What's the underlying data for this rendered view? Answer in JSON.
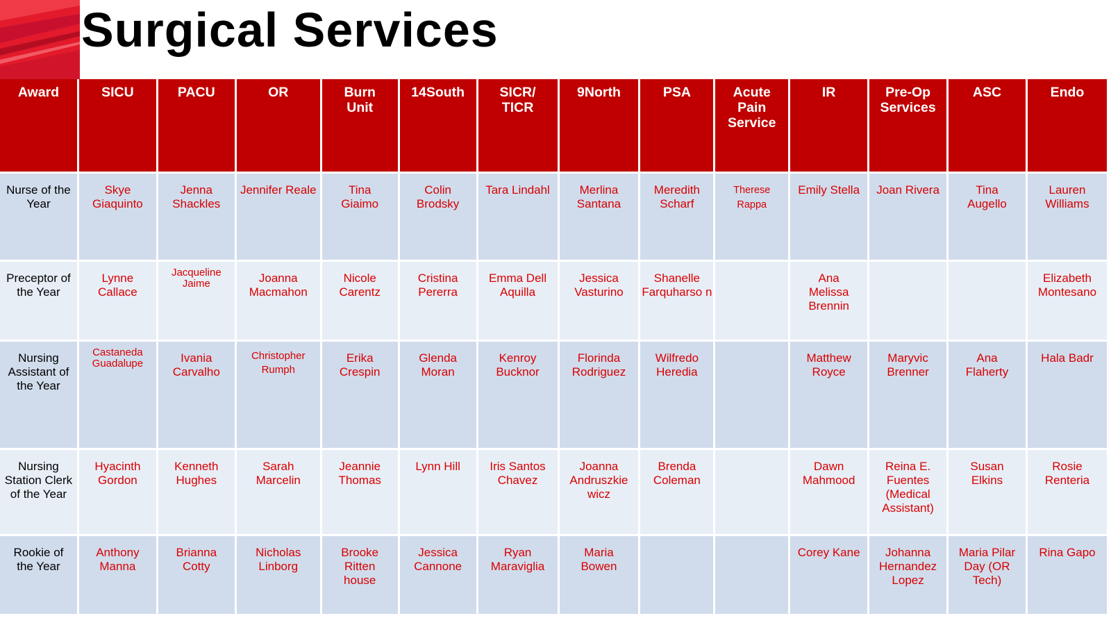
{
  "page": {
    "title": "Surgical Services"
  },
  "colors": {
    "header_bg": "#c00000",
    "header_text": "#ffffff",
    "winner_text": "#d90000",
    "row_band_dark": "#d0dcec",
    "row_band_light": "#e8eef6",
    "logo_red": "#e21a2c"
  },
  "logo": {
    "icon": "red-stripes-logo"
  },
  "table": {
    "headers": [
      "Award",
      "SICU",
      "PACU",
      "OR",
      "Burn Unit",
      "14South",
      "SICR/ TICR",
      "9North",
      "PSA",
      "Acute Pain Service",
      "IR",
      "Pre-Op Services",
      "ASC",
      "Endo"
    ],
    "rows": [
      {
        "award": "Nurse of the Year",
        "cells": [
          "Skye Giaquinto",
          "Jenna Shackles",
          "Jennifer Reale",
          "Tina Giaimo",
          "Colin Brodsky",
          "Tara Lindahl",
          "Merlina Santana",
          "Meredith Scharf",
          "Therese Rappa",
          "Emily Stella",
          "Joan Rivera",
          "Tina Augello",
          "Lauren Williams"
        ]
      },
      {
        "award": "Preceptor of the Year",
        "cells": [
          "Lynne Callace",
          "Jacqueline Jaime",
          "Joanna Macmahon",
          "Nicole Carentz",
          "Cristina Pererra",
          "Emma Dell Aquilla",
          "Jessica Vasturino",
          "Shanelle Farquharso n",
          "",
          "Ana Melissa Brennin",
          "",
          "",
          "Elizabeth Montesano"
        ]
      },
      {
        "award": "Nursing Assistant of the Year",
        "cells": [
          "Castaneda Guadalupe",
          "Ivania Carvalho",
          "Christopher Rumph",
          "Erika Crespin",
          "Glenda Moran",
          "Kenroy Bucknor",
          "Florinda Rodriguez",
          "Wilfredo Heredia",
          "",
          "Matthew Royce",
          "Maryvic Brenner",
          "Ana Flaherty",
          "Hala Badr"
        ]
      },
      {
        "award": "Nursing Station Clerk of the Year",
        "cells": [
          "Hyacinth Gordon",
          "Kenneth Hughes",
          "Sarah Marcelin",
          "Jeannie Thomas",
          "Lynn Hill",
          "Iris Santos Chavez",
          "Joanna Andruszkie wicz",
          "Brenda Coleman",
          "",
          "Dawn Mahmood",
          "Reina E. Fuentes (Medical Assistant)",
          "Susan Elkins",
          "Rosie Renteria"
        ]
      },
      {
        "award": "Rookie of the Year",
        "cells": [
          "Anthony Manna",
          "Brianna Cotty",
          "Nicholas Linborg",
          "Brooke Ritten house",
          "Jessica Cannone",
          "Ryan Maraviglia",
          "Maria Bowen",
          "",
          "",
          "Corey Kane",
          "Johanna Hernandez Lopez",
          "Maria Pilar Day (OR Tech)",
          "Rina Gapo"
        ]
      }
    ]
  }
}
